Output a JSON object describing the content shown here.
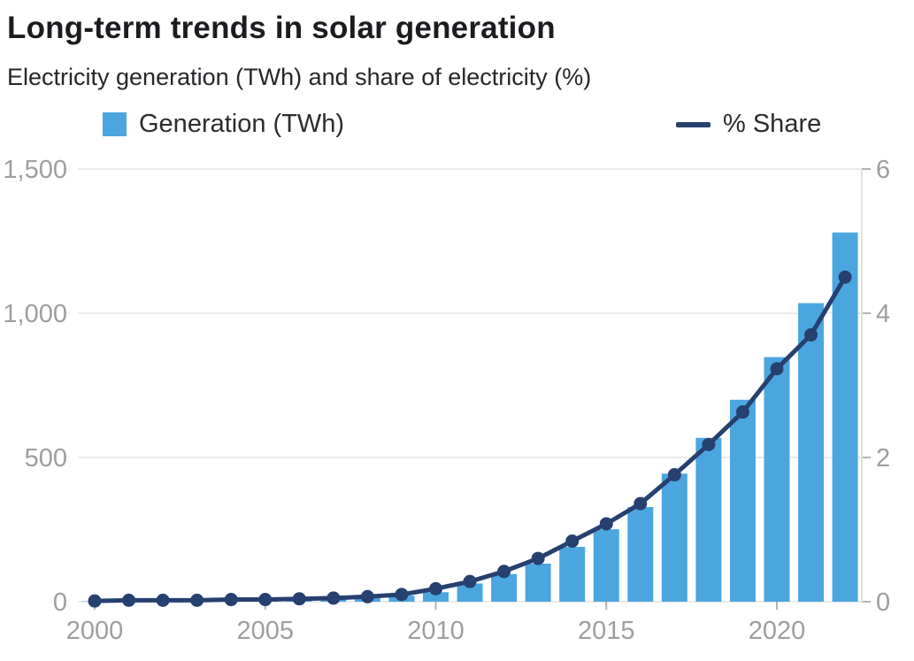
{
  "header": {
    "title": "Long-term trends in solar generation",
    "subtitle": "Electricity generation (TWh) and share of electricity (%)"
  },
  "legend": {
    "generation_label": "Generation (TWh)",
    "share_label": "% Share"
  },
  "colors": {
    "bar": "#4BA6DF",
    "line": "#26406F",
    "grid": "#EAEAEA",
    "axis_line": "#E3E3E3",
    "tick": "#B3B3B3",
    "axis_text": "#9E9E9E"
  },
  "chart_data": {
    "type": "bar+line",
    "title": "Long-term trends in solar generation",
    "subtitle": "Electricity generation (TWh) and share of electricity (%)",
    "x": [
      2000,
      2001,
      2002,
      2003,
      2004,
      2005,
      2006,
      2007,
      2008,
      2009,
      2010,
      2011,
      2012,
      2013,
      2014,
      2015,
      2016,
      2017,
      2018,
      2019,
      2020,
      2021,
      2022
    ],
    "series": [
      {
        "name": "Generation (TWh)",
        "type": "bar",
        "axis": "left",
        "values": [
          1,
          1.5,
          2,
          2.6,
          3.5,
          4.5,
          6,
          8,
          12,
          21,
          33,
          63,
          96,
          132,
          190,
          251,
          328,
          444,
          568,
          700,
          848,
          1035,
          1280
        ]
      },
      {
        "name": "% Share",
        "type": "line",
        "axis": "right",
        "values": [
          0.01,
          0.02,
          0.02,
          0.02,
          0.03,
          0.03,
          0.04,
          0.05,
          0.07,
          0.1,
          0.18,
          0.28,
          0.42,
          0.6,
          0.84,
          1.08,
          1.36,
          1.76,
          2.18,
          2.63,
          3.23,
          3.7,
          4.5
        ]
      }
    ],
    "left_axis": {
      "label": "Generation (TWh)",
      "range": [
        0,
        1500
      ],
      "ticks": [
        0,
        500,
        1000,
        1500
      ],
      "tick_labels": [
        "0",
        "500",
        "1,000",
        "1,500"
      ]
    },
    "right_axis": {
      "label": "% Share",
      "range": [
        0,
        6
      ],
      "ticks": [
        0,
        2,
        4,
        6
      ],
      "tick_labels": [
        "0",
        "2",
        "4",
        "6"
      ]
    },
    "x_axis": {
      "tick_years": [
        2000,
        2005,
        2010,
        2015,
        2020
      ],
      "tick_labels": [
        "2000",
        "2005",
        "2010",
        "2015",
        "2020"
      ]
    },
    "grid": true,
    "legend_position": "top"
  }
}
